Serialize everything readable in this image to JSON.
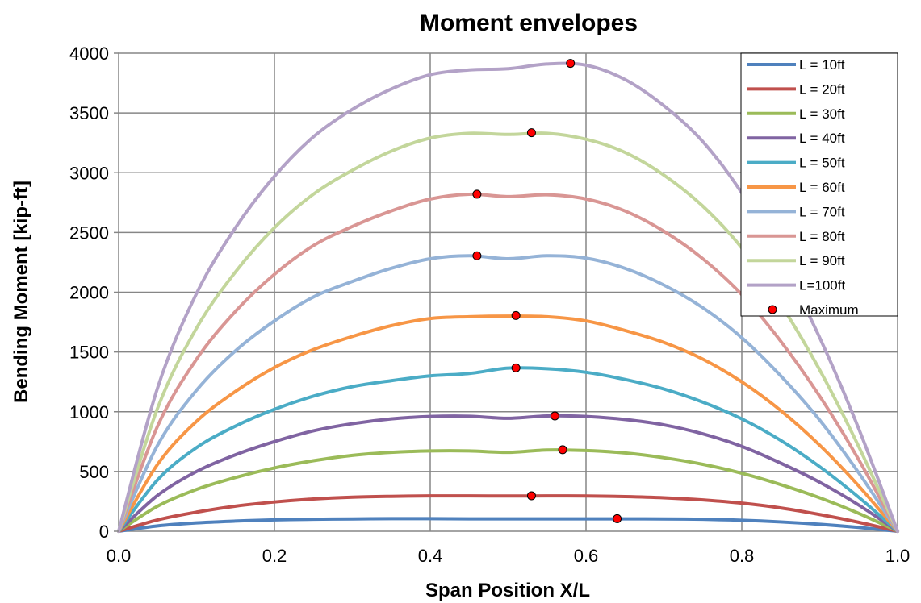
{
  "chart_data": {
    "type": "line",
    "title": "Moment envelopes",
    "xlabel": "Span Position X/L",
    "ylabel": "Bending Moment [kip-ft]",
    "xlim": [
      0,
      1
    ],
    "ylim": [
      0,
      4000
    ],
    "x_ticks": [
      "0.0",
      "0.2",
      "0.4",
      "0.6",
      "0.8",
      "1.0"
    ],
    "y_ticks": [
      "0",
      "500",
      "1000",
      "1500",
      "2000",
      "2500",
      "3000",
      "3500",
      "4000"
    ],
    "grid": true,
    "legend_position": "top-right",
    "x": [
      0,
      0.05,
      0.1,
      0.15,
      0.2,
      0.25,
      0.3,
      0.35,
      0.4,
      0.45,
      0.5,
      0.55,
      0.6,
      0.65,
      0.7,
      0.75,
      0.8,
      0.85,
      0.9,
      0.95,
      1.0
    ],
    "series": [
      {
        "name": "L = 10ft",
        "color": "#4F81BD",
        "values": [
          0,
          45,
          70,
          85,
          95,
          100,
          103,
          105,
          105,
          104,
          104,
          104,
          104,
          104,
          103,
          100,
          92,
          78,
          58,
          32,
          0
        ]
      },
      {
        "name": "L = 20ft",
        "color": "#C0504D",
        "values": [
          0,
          95,
          160,
          210,
          245,
          270,
          285,
          292,
          296,
          296,
          295,
          296,
          295,
          290,
          280,
          262,
          235,
          195,
          140,
          75,
          0
        ]
      },
      {
        "name": "L = 30ft",
        "color": "#9BBB59",
        "values": [
          0,
          210,
          350,
          450,
          530,
          590,
          635,
          660,
          672,
          672,
          660,
          680,
          675,
          655,
          615,
          560,
          485,
          390,
          280,
          150,
          0
        ]
      },
      {
        "name": "L = 40ft",
        "color": "#8064A2",
        "values": [
          0,
          300,
          500,
          640,
          750,
          840,
          900,
          940,
          960,
          962,
          945,
          965,
          960,
          935,
          890,
          815,
          710,
          570,
          410,
          220,
          0
        ]
      },
      {
        "name": "L = 50ft",
        "color": "#4BACC6",
        "values": [
          0,
          430,
          700,
          880,
          1020,
          1130,
          1210,
          1260,
          1300,
          1320,
          1365,
          1360,
          1330,
          1270,
          1190,
          1080,
          940,
          760,
          540,
          285,
          0
        ]
      },
      {
        "name": "L = 60ft",
        "color": "#F79646",
        "values": [
          0,
          560,
          920,
          1170,
          1370,
          1520,
          1630,
          1720,
          1780,
          1795,
          1800,
          1795,
          1760,
          1680,
          1580,
          1440,
          1250,
          1010,
          720,
          380,
          0
        ]
      },
      {
        "name": "L = 70ft",
        "color": "#95B3D7",
        "values": [
          0,
          720,
          1180,
          1510,
          1760,
          1960,
          2090,
          2200,
          2280,
          2305,
          2280,
          2305,
          2285,
          2200,
          2060,
          1870,
          1620,
          1300,
          930,
          490,
          0
        ]
      },
      {
        "name": "L = 80ft",
        "color": "#D99694",
        "values": [
          0,
          880,
          1440,
          1840,
          2150,
          2390,
          2550,
          2680,
          2780,
          2820,
          2800,
          2815,
          2780,
          2680,
          2510,
          2280,
          1980,
          1590,
          1130,
          600,
          0
        ]
      },
      {
        "name": "L = 90ft",
        "color": "#C3D69B",
        "values": [
          0,
          1030,
          1700,
          2170,
          2540,
          2820,
          3020,
          3180,
          3290,
          3330,
          3320,
          3330,
          3280,
          3170,
          2980,
          2720,
          2370,
          1900,
          1350,
          710,
          0
        ]
      },
      {
        "name": "L=100ft",
        "color": "#B3A2C7",
        "values": [
          0,
          1200,
          1990,
          2540,
          2970,
          3300,
          3530,
          3700,
          3820,
          3860,
          3870,
          3910,
          3900,
          3780,
          3560,
          3260,
          2830,
          2270,
          1620,
          860,
          0
        ]
      }
    ],
    "maximum": {
      "name": "Maximum",
      "color": "#FF0000",
      "points": [
        {
          "x": 0.64,
          "y": 105
        },
        {
          "x": 0.53,
          "y": 297
        },
        {
          "x": 0.57,
          "y": 682
        },
        {
          "x": 0.56,
          "y": 965
        },
        {
          "x": 0.51,
          "y": 1367
        },
        {
          "x": 0.51,
          "y": 1805
        },
        {
          "x": 0.46,
          "y": 2305
        },
        {
          "x": 0.46,
          "y": 2820
        },
        {
          "x": 0.53,
          "y": 3335
        },
        {
          "x": 0.58,
          "y": 3915
        }
      ]
    }
  }
}
